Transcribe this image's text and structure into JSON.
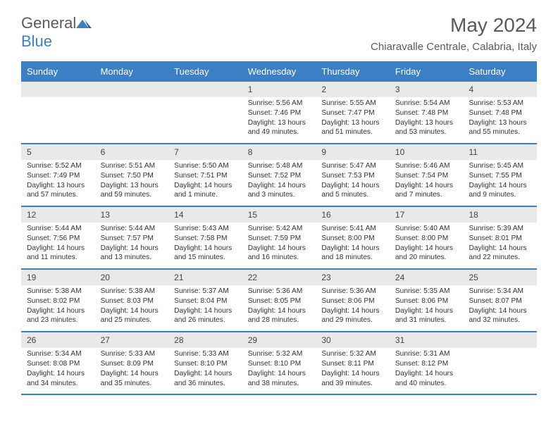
{
  "logo": {
    "text1": "General",
    "text2": "Blue"
  },
  "title": "May 2024",
  "location": "Chiaravalle Centrale, Calabria, Italy",
  "colors": {
    "header_blue": "#3b7fc4",
    "gray_bar": "#e9e9e9",
    "text_gray": "#5a5a5a"
  },
  "day_names": [
    "Sunday",
    "Monday",
    "Tuesday",
    "Wednesday",
    "Thursday",
    "Friday",
    "Saturday"
  ],
  "weeks": [
    [
      {
        "n": "",
        "sr": "",
        "ss": "",
        "dl": ""
      },
      {
        "n": "",
        "sr": "",
        "ss": "",
        "dl": ""
      },
      {
        "n": "",
        "sr": "",
        "ss": "",
        "dl": ""
      },
      {
        "n": "1",
        "sr": "Sunrise: 5:56 AM",
        "ss": "Sunset: 7:46 PM",
        "dl": "Daylight: 13 hours and 49 minutes."
      },
      {
        "n": "2",
        "sr": "Sunrise: 5:55 AM",
        "ss": "Sunset: 7:47 PM",
        "dl": "Daylight: 13 hours and 51 minutes."
      },
      {
        "n": "3",
        "sr": "Sunrise: 5:54 AM",
        "ss": "Sunset: 7:48 PM",
        "dl": "Daylight: 13 hours and 53 minutes."
      },
      {
        "n": "4",
        "sr": "Sunrise: 5:53 AM",
        "ss": "Sunset: 7:48 PM",
        "dl": "Daylight: 13 hours and 55 minutes."
      }
    ],
    [
      {
        "n": "5",
        "sr": "Sunrise: 5:52 AM",
        "ss": "Sunset: 7:49 PM",
        "dl": "Daylight: 13 hours and 57 minutes."
      },
      {
        "n": "6",
        "sr": "Sunrise: 5:51 AM",
        "ss": "Sunset: 7:50 PM",
        "dl": "Daylight: 13 hours and 59 minutes."
      },
      {
        "n": "7",
        "sr": "Sunrise: 5:50 AM",
        "ss": "Sunset: 7:51 PM",
        "dl": "Daylight: 14 hours and 1 minute."
      },
      {
        "n": "8",
        "sr": "Sunrise: 5:48 AM",
        "ss": "Sunset: 7:52 PM",
        "dl": "Daylight: 14 hours and 3 minutes."
      },
      {
        "n": "9",
        "sr": "Sunrise: 5:47 AM",
        "ss": "Sunset: 7:53 PM",
        "dl": "Daylight: 14 hours and 5 minutes."
      },
      {
        "n": "10",
        "sr": "Sunrise: 5:46 AM",
        "ss": "Sunset: 7:54 PM",
        "dl": "Daylight: 14 hours and 7 minutes."
      },
      {
        "n": "11",
        "sr": "Sunrise: 5:45 AM",
        "ss": "Sunset: 7:55 PM",
        "dl": "Daylight: 14 hours and 9 minutes."
      }
    ],
    [
      {
        "n": "12",
        "sr": "Sunrise: 5:44 AM",
        "ss": "Sunset: 7:56 PM",
        "dl": "Daylight: 14 hours and 11 minutes."
      },
      {
        "n": "13",
        "sr": "Sunrise: 5:44 AM",
        "ss": "Sunset: 7:57 PM",
        "dl": "Daylight: 14 hours and 13 minutes."
      },
      {
        "n": "14",
        "sr": "Sunrise: 5:43 AM",
        "ss": "Sunset: 7:58 PM",
        "dl": "Daylight: 14 hours and 15 minutes."
      },
      {
        "n": "15",
        "sr": "Sunrise: 5:42 AM",
        "ss": "Sunset: 7:59 PM",
        "dl": "Daylight: 14 hours and 16 minutes."
      },
      {
        "n": "16",
        "sr": "Sunrise: 5:41 AM",
        "ss": "Sunset: 8:00 PM",
        "dl": "Daylight: 14 hours and 18 minutes."
      },
      {
        "n": "17",
        "sr": "Sunrise: 5:40 AM",
        "ss": "Sunset: 8:00 PM",
        "dl": "Daylight: 14 hours and 20 minutes."
      },
      {
        "n": "18",
        "sr": "Sunrise: 5:39 AM",
        "ss": "Sunset: 8:01 PM",
        "dl": "Daylight: 14 hours and 22 minutes."
      }
    ],
    [
      {
        "n": "19",
        "sr": "Sunrise: 5:38 AM",
        "ss": "Sunset: 8:02 PM",
        "dl": "Daylight: 14 hours and 23 minutes."
      },
      {
        "n": "20",
        "sr": "Sunrise: 5:38 AM",
        "ss": "Sunset: 8:03 PM",
        "dl": "Daylight: 14 hours and 25 minutes."
      },
      {
        "n": "21",
        "sr": "Sunrise: 5:37 AM",
        "ss": "Sunset: 8:04 PM",
        "dl": "Daylight: 14 hours and 26 minutes."
      },
      {
        "n": "22",
        "sr": "Sunrise: 5:36 AM",
        "ss": "Sunset: 8:05 PM",
        "dl": "Daylight: 14 hours and 28 minutes."
      },
      {
        "n": "23",
        "sr": "Sunrise: 5:36 AM",
        "ss": "Sunset: 8:06 PM",
        "dl": "Daylight: 14 hours and 29 minutes."
      },
      {
        "n": "24",
        "sr": "Sunrise: 5:35 AM",
        "ss": "Sunset: 8:06 PM",
        "dl": "Daylight: 14 hours and 31 minutes."
      },
      {
        "n": "25",
        "sr": "Sunrise: 5:34 AM",
        "ss": "Sunset: 8:07 PM",
        "dl": "Daylight: 14 hours and 32 minutes."
      }
    ],
    [
      {
        "n": "26",
        "sr": "Sunrise: 5:34 AM",
        "ss": "Sunset: 8:08 PM",
        "dl": "Daylight: 14 hours and 34 minutes."
      },
      {
        "n": "27",
        "sr": "Sunrise: 5:33 AM",
        "ss": "Sunset: 8:09 PM",
        "dl": "Daylight: 14 hours and 35 minutes."
      },
      {
        "n": "28",
        "sr": "Sunrise: 5:33 AM",
        "ss": "Sunset: 8:10 PM",
        "dl": "Daylight: 14 hours and 36 minutes."
      },
      {
        "n": "29",
        "sr": "Sunrise: 5:32 AM",
        "ss": "Sunset: 8:10 PM",
        "dl": "Daylight: 14 hours and 38 minutes."
      },
      {
        "n": "30",
        "sr": "Sunrise: 5:32 AM",
        "ss": "Sunset: 8:11 PM",
        "dl": "Daylight: 14 hours and 39 minutes."
      },
      {
        "n": "31",
        "sr": "Sunrise: 5:31 AM",
        "ss": "Sunset: 8:12 PM",
        "dl": "Daylight: 14 hours and 40 minutes."
      },
      {
        "n": "",
        "sr": "",
        "ss": "",
        "dl": ""
      }
    ]
  ]
}
